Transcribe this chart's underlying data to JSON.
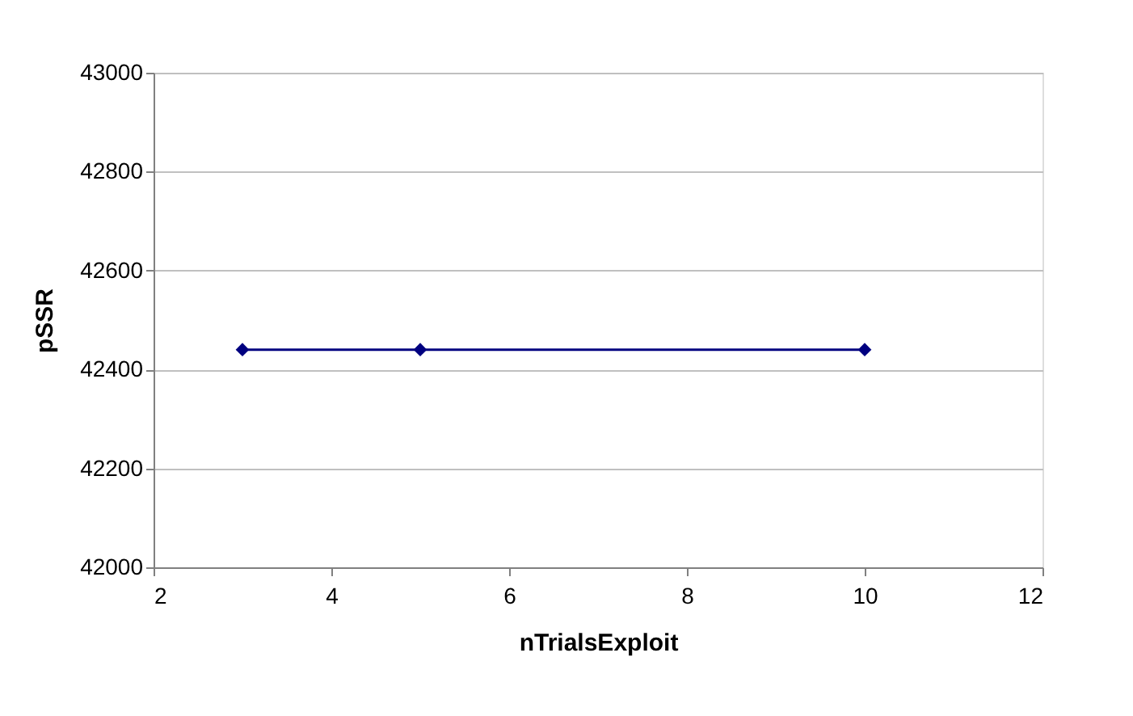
{
  "chart_data": {
    "type": "line",
    "xlabel": "nTrialsExploit",
    "ylabel": "pSSR",
    "x": [
      3,
      5,
      10
    ],
    "series": [
      {
        "color": "#000080",
        "values": [
          42440,
          42440,
          42440
        ]
      }
    ],
    "xlim": [
      2,
      12
    ],
    "xticks": [
      2,
      4,
      6,
      8,
      10,
      12
    ],
    "ylim": [
      42000,
      43000
    ],
    "yticks": [
      42000,
      42200,
      42400,
      42600,
      42800,
      43000
    ],
    "grid": "y",
    "marker": "diamond",
    "line_style": "solid",
    "legend": false
  }
}
